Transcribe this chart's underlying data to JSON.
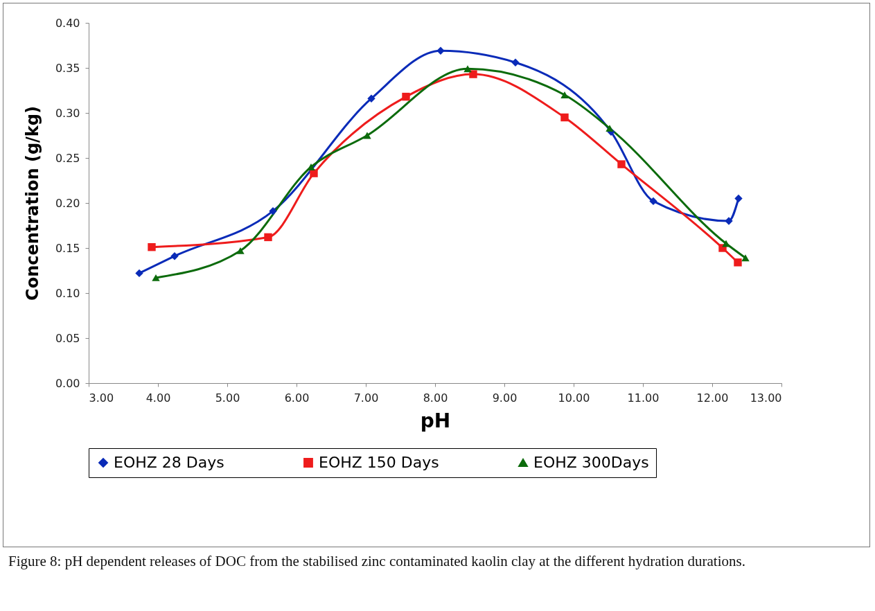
{
  "chart_data": {
    "type": "line",
    "xlabel": "pH",
    "ylabel": "Concentration (g/kg)",
    "xlim": [
      3,
      13
    ],
    "ylim": [
      0,
      0.4
    ],
    "xticks": [
      {
        "value": 3,
        "label": "3.00"
      },
      {
        "value": 4,
        "label": "4.00"
      },
      {
        "value": 5,
        "label": "5.00"
      },
      {
        "value": 6,
        "label": "6.00"
      },
      {
        "value": 7,
        "label": "7.00"
      },
      {
        "value": 8,
        "label": "8.00"
      },
      {
        "value": 9,
        "label": "9.00"
      },
      {
        "value": 10,
        "label": "10.00"
      },
      {
        "value": 11,
        "label": "11.00"
      },
      {
        "value": 12,
        "label": "12.00"
      },
      {
        "value": 13,
        "label": "13.00"
      }
    ],
    "yticks": [
      {
        "value": 0,
        "label": "0.00"
      },
      {
        "value": 0.05,
        "label": "0.05"
      },
      {
        "value": 0.1,
        "label": "0.10"
      },
      {
        "value": 0.15,
        "label": "0.15"
      },
      {
        "value": 0.2,
        "label": "0.20"
      },
      {
        "value": 0.25,
        "label": "0.25"
      },
      {
        "value": 0.3,
        "label": "0.30"
      },
      {
        "value": 0.35,
        "label": "0.35"
      },
      {
        "value": 0.4,
        "label": "0.40"
      }
    ],
    "grid": false,
    "legend": "bottom",
    "series": [
      {
        "name": "EOHZ 28 Days",
        "color": "#0a2bb8",
        "marker": "diamond",
        "x": [
          3.73,
          4.24,
          5.66,
          7.08,
          8.08,
          9.16,
          10.54,
          11.15,
          12.24,
          12.38
        ],
        "values": [
          0.122,
          0.141,
          0.191,
          0.316,
          0.369,
          0.356,
          0.279,
          0.202,
          0.18,
          0.205
        ]
      },
      {
        "name": "EOHZ 150 Days",
        "color": "#ee1c1c",
        "marker": "square",
        "x": [
          3.91,
          5.59,
          6.25,
          7.58,
          8.55,
          9.87,
          10.69,
          12.15,
          12.37
        ],
        "values": [
          0.151,
          0.162,
          0.233,
          0.318,
          0.343,
          0.295,
          0.243,
          0.15,
          0.134
        ]
      },
      {
        "name": "EOHZ 300Days",
        "color": "#0c6b0c",
        "marker": "triangle",
        "x": [
          3.97,
          5.19,
          6.21,
          7.02,
          8.47,
          9.87,
          10.52,
          12.2,
          12.48
        ],
        "values": [
          0.117,
          0.147,
          0.24,
          0.275,
          0.349,
          0.32,
          0.283,
          0.155,
          0.139
        ]
      }
    ],
    "annotations": [
      "Figure 8: pH dependent releases of DOC from the stabilised zinc contaminated kaolin clay at the different hydration durations."
    ]
  }
}
